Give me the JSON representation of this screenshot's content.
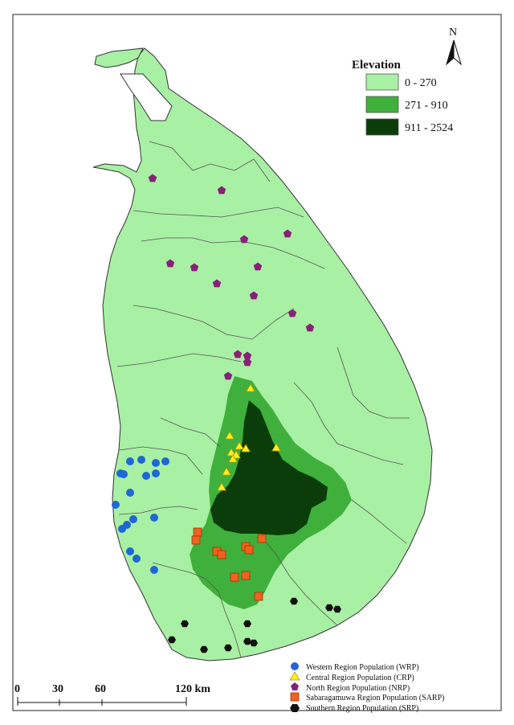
{
  "legend": {
    "title": "Elevation",
    "classes": [
      {
        "label": "0 - 270",
        "color": "#a8f0a4"
      },
      {
        "label": "271 - 910",
        "color": "#3fb03c"
      },
      {
        "label": "911 - 2524",
        "color": "#0a3d0a"
      }
    ]
  },
  "north_arrow": {
    "label": "N"
  },
  "scale_bar": {
    "ticks": [
      "0",
      "30",
      "60",
      "120 km"
    ]
  },
  "populations": {
    "wrp": {
      "label": "Western Region Population (WRP)",
      "color": "#1f66d6",
      "shape": "circle"
    },
    "crp": {
      "label": "Central Region Population (CRP)",
      "color": "#ffee22",
      "shape": "triangle"
    },
    "nrp": {
      "label": "North Region Population (NRP)",
      "color": "#8a1f7a",
      "shape": "pentagon"
    },
    "sarp": {
      "label": "Sabaragamuwa Region Population (SARP)",
      "color": "#f0621e",
      "shape": "square"
    },
    "srp": {
      "label": "Southern Region Population (SRP)",
      "color": "#111111",
      "shape": "hexagon"
    }
  },
  "map_colors": {
    "land": "#a8f0a4",
    "mid": "#3fb03c",
    "high": "#0a3d0a",
    "boundary": "#555555"
  },
  "sites": {
    "nrp": [
      [
        190,
        222
      ],
      [
        276,
        237
      ],
      [
        304,
        298
      ],
      [
        358,
        291
      ],
      [
        212,
        328
      ],
      [
        242,
        333
      ],
      [
        321,
        332
      ],
      [
        270,
        353
      ],
      [
        316,
        368
      ],
      [
        364,
        390
      ],
      [
        386,
        408
      ],
      [
        296,
        441
      ],
      [
        308,
        443
      ],
      [
        308,
        451
      ],
      [
        284,
        468
      ]
    ],
    "crp": [
      [
        312,
        484
      ],
      [
        286,
        543
      ],
      [
        298,
        556
      ],
      [
        306,
        559
      ],
      [
        288,
        564
      ],
      [
        294,
        567
      ],
      [
        290,
        572
      ],
      [
        344,
        558
      ],
      [
        282,
        588
      ],
      [
        276,
        607
      ]
    ],
    "wrp": [
      [
        176,
        572
      ],
      [
        162,
        574
      ],
      [
        194,
        576
      ],
      [
        206,
        574
      ],
      [
        150,
        589
      ],
      [
        154,
        590
      ],
      [
        182,
        592
      ],
      [
        194,
        589
      ],
      [
        162,
        613
      ],
      [
        144,
        628
      ],
      [
        166,
        646
      ],
      [
        192,
        644
      ],
      [
        158,
        653
      ],
      [
        152,
        658
      ],
      [
        162,
        686
      ],
      [
        170,
        695
      ],
      [
        192,
        709
      ]
    ],
    "sarp": [
      [
        246,
        662
      ],
      [
        244,
        672
      ],
      [
        270,
        686
      ],
      [
        276,
        690
      ],
      [
        326,
        670
      ],
      [
        306,
        680
      ],
      [
        310,
        684
      ],
      [
        292,
        718
      ],
      [
        306,
        716
      ],
      [
        322,
        742
      ]
    ],
    "srp": [
      [
        366,
        748
      ],
      [
        410,
        756
      ],
      [
        420,
        758
      ],
      [
        230,
        776
      ],
      [
        308,
        776
      ],
      [
        214,
        796
      ],
      [
        254,
        808
      ],
      [
        284,
        806
      ],
      [
        308,
        798
      ],
      [
        316,
        800
      ]
    ]
  }
}
